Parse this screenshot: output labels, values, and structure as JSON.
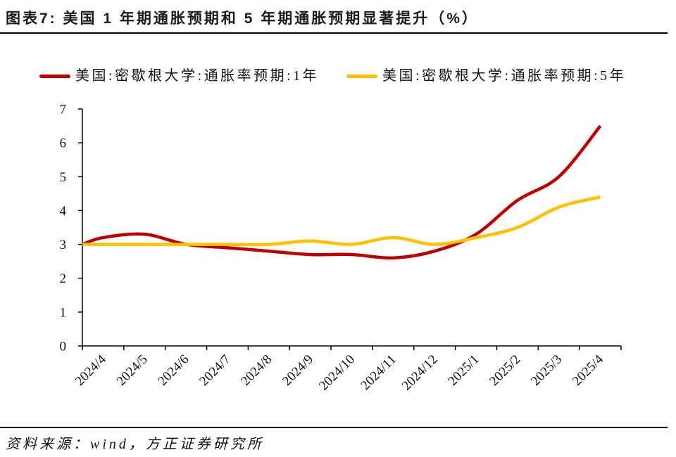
{
  "chart_data": {
    "type": "line",
    "title": "图表7: 美国 1 年期通胀预期和 5 年期通胀预期显著提升（%）",
    "categories": [
      "2024/4",
      "2024/5",
      "2024/6",
      "2024/7",
      "2024/8",
      "2024/9",
      "2024/10",
      "2024/11",
      "2024/12",
      "2025/1",
      "2025/2",
      "2025/3",
      "2025/4"
    ],
    "series": [
      {
        "name": "美国:密歇根大学:通胀率预期:1年",
        "color": "#C00000",
        "values": [
          3.2,
          3.3,
          3.0,
          2.9,
          2.8,
          2.7,
          2.7,
          2.6,
          2.8,
          3.3,
          4.3,
          5.0,
          6.5
        ]
      },
      {
        "name": "美国:密歇根大学:通胀率预期:5年",
        "color": "#FFC000",
        "values": [
          3.0,
          3.0,
          3.0,
          3.0,
          3.0,
          3.1,
          3.0,
          3.2,
          3.0,
          3.2,
          3.5,
          4.1,
          4.4
        ]
      }
    ],
    "ylim": [
      0,
      7
    ],
    "yticks": [
      0,
      1,
      2,
      3,
      4,
      5,
      6,
      7
    ],
    "grid": false,
    "smooth": true,
    "legend": "top"
  },
  "source": "资料来源：wind，方正证券研究所"
}
